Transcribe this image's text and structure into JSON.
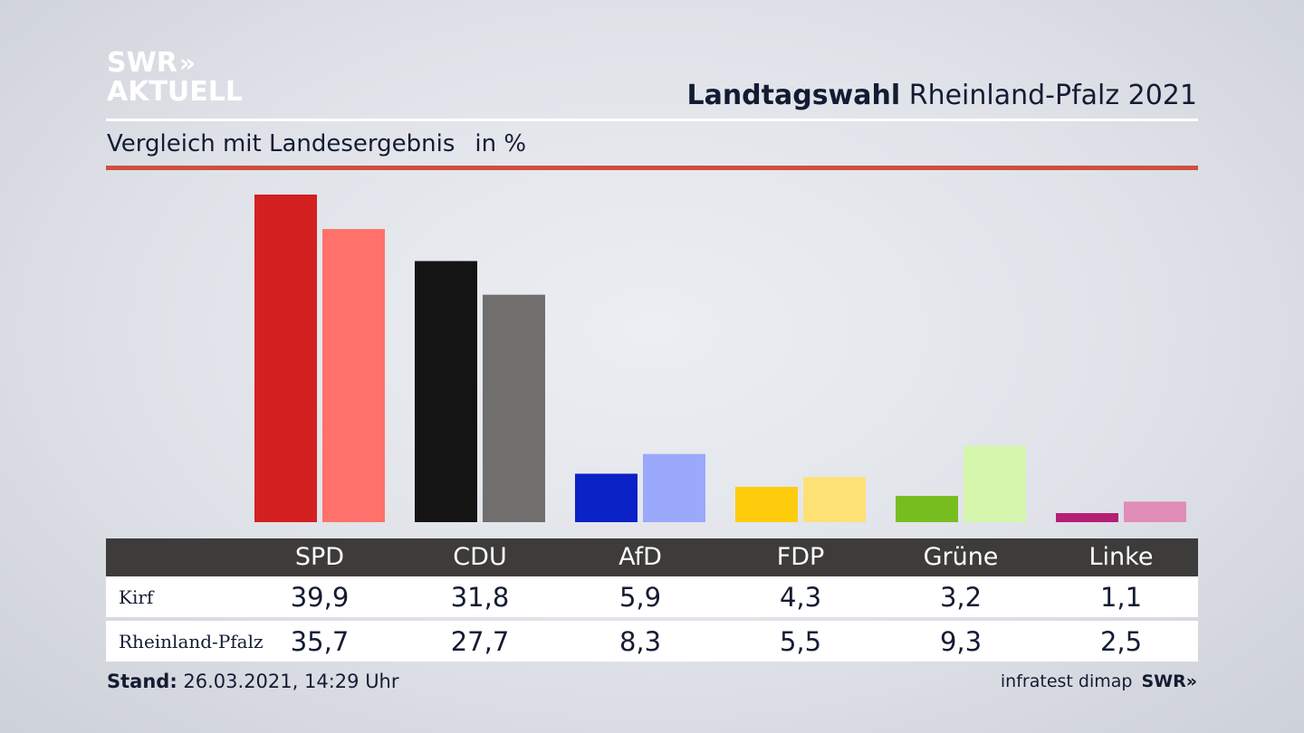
{
  "branding": {
    "logo_line1": "SWR",
    "logo_arrows": "»",
    "logo_line2": "AKTUELL"
  },
  "header": {
    "title_bold": "Landtagswahl",
    "title_rest": "Rheinland-Pfalz 2021"
  },
  "subheader": {
    "text": "Vergleich mit Landesergebnis",
    "unit": "in %"
  },
  "chart_data": {
    "type": "bar",
    "title": "Landtagswahl Rheinland-Pfalz 2021",
    "subtitle": "Vergleich mit Landesergebnis in %",
    "categories": [
      "SPD",
      "CDU",
      "AfD",
      "FDP",
      "Grüne",
      "Linke"
    ],
    "series": [
      {
        "name": "Kirf",
        "values": [
          39.9,
          31.8,
          5.9,
          4.3,
          3.2,
          1.1
        ],
        "colors": [
          "#d42020",
          "#141414",
          "#0a22c6",
          "#ffcc0d",
          "#78bd1f",
          "#b51e73"
        ]
      },
      {
        "name": "Rheinland-Pfalz",
        "values": [
          35.7,
          27.7,
          8.3,
          5.5,
          9.3,
          2.5
        ],
        "colors": [
          "#ff716a",
          "#706f6e",
          "#9aa9fc",
          "#fde175",
          "#d5f6ac",
          "#e08db8"
        ]
      }
    ],
    "ylim": [
      0,
      40
    ],
    "grid": false,
    "legend": "table-below"
  },
  "table": {
    "rows": [
      {
        "label": "Kirf",
        "values": [
          "39,9",
          "31,8",
          "5,9",
          "4,3",
          "3,2",
          "1,1"
        ]
      },
      {
        "label": "Rheinland-Pfalz",
        "values": [
          "35,7",
          "27,7",
          "8,3",
          "5,5",
          "9,3",
          "2,5"
        ]
      }
    ]
  },
  "footer": {
    "stand_label": "Stand:",
    "stand_value": "26.03.2021, 14:29 Uhr",
    "source": "infratest dimap",
    "source_logo": "SWR»"
  }
}
